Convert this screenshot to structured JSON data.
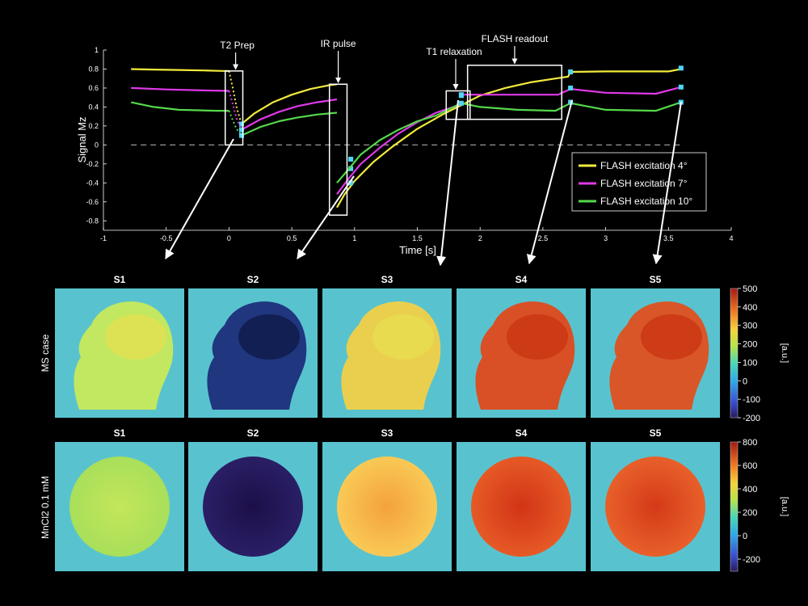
{
  "chart_data": [
    {
      "type": "line",
      "xlabel": "Time [s]",
      "ylabel": "Signal Mz",
      "xlim": [
        -1,
        4
      ],
      "ylim": [
        -0.9,
        1.0
      ],
      "xticks": [
        -1,
        -0.5,
        0,
        0.5,
        1,
        1.5,
        2,
        2.5,
        3,
        3.5,
        4
      ],
      "xtick_labels": [
        "-1",
        "-0.5",
        "0",
        "0.5",
        "1",
        "1.5",
        "2",
        "2.5",
        "3",
        "3.5",
        "4"
      ],
      "yticks": [
        -0.8,
        -0.6,
        -0.4,
        -0.2,
        0,
        0.2,
        0.4,
        0.6,
        0.8,
        1
      ],
      "ytick_labels": [
        "-0.8",
        "-0.6",
        "-0.4",
        "-0.2",
        "0",
        "0.2",
        "0.4",
        "0.6",
        "0.8",
        "1"
      ],
      "zero_line": "dashed",
      "legend_position": "right",
      "series": [
        {
          "name": "FLASH excitation 4°",
          "color": "#f2ea3c",
          "segments": [
            [
              [
                -0.78,
                0.8
              ],
              [
                -0.6,
                0.795
              ],
              [
                -0.4,
                0.79
              ],
              [
                -0.2,
                0.785
              ],
              [
                -0.05,
                0.78
              ],
              [
                0.0,
                0.78
              ]
            ],
            [
              [
                0.0,
                0.78
              ],
              [
                0.03,
                0.6
              ],
              [
                0.06,
                0.4
              ],
              [
                0.1,
                0.22
              ]
            ],
            [
              [
                0.1,
                0.22
              ],
              [
                0.2,
                0.33
              ],
              [
                0.35,
                0.45
              ],
              [
                0.5,
                0.53
              ],
              [
                0.65,
                0.59
              ],
              [
                0.8,
                0.63
              ],
              [
                0.86,
                0.64
              ]
            ],
            [
              [
                0.86,
                -0.66
              ],
              [
                0.92,
                -0.52
              ],
              [
                1.0,
                -0.38
              ],
              [
                1.15,
                -0.18
              ],
              [
                1.3,
                -0.02
              ],
              [
                1.5,
                0.17
              ],
              [
                1.7,
                0.32
              ],
              [
                1.85,
                0.42
              ]
            ],
            [
              [
                1.85,
                0.42
              ],
              [
                2.0,
                0.52
              ],
              [
                2.2,
                0.6
              ],
              [
                2.4,
                0.66
              ],
              [
                2.6,
                0.7
              ],
              [
                2.7,
                0.72
              ],
              [
                2.72,
                0.77
              ],
              [
                3.0,
                0.775
              ],
              [
                3.3,
                0.775
              ],
              [
                3.5,
                0.775
              ],
              [
                3.6,
                0.8
              ]
            ]
          ],
          "markers": [
            [
              0.1,
              0.22
            ],
            [
              0.97,
              -0.15
            ],
            [
              1.85,
              0.52
            ],
            [
              2.72,
              0.77
            ],
            [
              3.6,
              0.81
            ]
          ]
        },
        {
          "name": "FLASH excitation 7°",
          "color": "#e038e8",
          "segments": [
            [
              [
                -0.78,
                0.6
              ],
              [
                -0.5,
                0.585
              ],
              [
                -0.2,
                0.575
              ],
              [
                0.0,
                0.57
              ]
            ],
            [
              [
                0.0,
                0.57
              ],
              [
                0.03,
                0.43
              ],
              [
                0.06,
                0.28
              ],
              [
                0.1,
                0.16
              ]
            ],
            [
              [
                0.1,
                0.16
              ],
              [
                0.25,
                0.27
              ],
              [
                0.4,
                0.35
              ],
              [
                0.55,
                0.41
              ],
              [
                0.7,
                0.45
              ],
              [
                0.86,
                0.48
              ]
            ],
            [
              [
                0.86,
                -0.52
              ],
              [
                0.95,
                -0.36
              ],
              [
                1.05,
                -0.2
              ],
              [
                1.2,
                -0.03
              ],
              [
                1.35,
                0.12
              ],
              [
                1.5,
                0.24
              ],
              [
                1.65,
                0.34
              ],
              [
                1.85,
                0.43
              ]
            ],
            [
              [
                1.85,
                0.53
              ],
              [
                2.1,
                0.53
              ],
              [
                2.4,
                0.53
              ],
              [
                2.62,
                0.53
              ],
              [
                2.72,
                0.59
              ],
              [
                3.0,
                0.55
              ],
              [
                3.4,
                0.54
              ],
              [
                3.6,
                0.61
              ]
            ]
          ],
          "markers": [
            [
              0.1,
              0.16
            ],
            [
              0.97,
              -0.25
            ],
            [
              1.85,
              0.53
            ],
            [
              2.72,
              0.6
            ],
            [
              3.6,
              0.61
            ]
          ]
        },
        {
          "name": "FLASH excitation 10°",
          "color": "#55d84a",
          "segments": [
            [
              [
                -0.78,
                0.45
              ],
              [
                -0.6,
                0.4
              ],
              [
                -0.4,
                0.37
              ],
              [
                -0.1,
                0.36
              ],
              [
                0.0,
                0.36
              ]
            ],
            [
              [
                0.0,
                0.36
              ],
              [
                0.03,
                0.26
              ],
              [
                0.06,
                0.17
              ],
              [
                0.1,
                0.1
              ]
            ],
            [
              [
                0.1,
                0.1
              ],
              [
                0.25,
                0.19
              ],
              [
                0.4,
                0.25
              ],
              [
                0.55,
                0.29
              ],
              [
                0.7,
                0.32
              ],
              [
                0.86,
                0.34
              ]
            ],
            [
              [
                0.86,
                -0.4
              ],
              [
                0.95,
                -0.26
              ],
              [
                1.05,
                -0.1
              ],
              [
                1.2,
                0.05
              ],
              [
                1.35,
                0.16
              ],
              [
                1.5,
                0.25
              ],
              [
                1.65,
                0.31
              ],
              [
                1.85,
                0.44
              ]
            ],
            [
              [
                1.85,
                0.44
              ],
              [
                2.0,
                0.4
              ],
              [
                2.3,
                0.37
              ],
              [
                2.6,
                0.36
              ],
              [
                2.72,
                0.44
              ],
              [
                3.0,
                0.37
              ],
              [
                3.4,
                0.36
              ],
              [
                3.6,
                0.45
              ]
            ]
          ],
          "markers": [
            [
              0.1,
              0.1
            ],
            [
              0.97,
              -0.4
            ],
            [
              1.85,
              0.44
            ],
            [
              2.72,
              0.45
            ],
            [
              3.6,
              0.45
            ]
          ]
        }
      ],
      "annotations": [
        {
          "label": "T2 Prep",
          "box": [
            -0.03,
            0.11,
            0.0,
            0.78
          ]
        },
        {
          "label": "IR pulse",
          "box": [
            0.8,
            0.94,
            -0.74,
            0.64
          ]
        },
        {
          "label": "T1 relaxation",
          "box": [
            1.73,
            1.92,
            0.27,
            0.57
          ]
        },
        {
          "label": "FLASH readout",
          "box": [
            1.9,
            2.65,
            0.27,
            0.84
          ]
        }
      ]
    }
  ],
  "panels": {
    "row1_label": "MS case",
    "row2_label": "MnCl2 0.1 mM",
    "titles": [
      "S1",
      "S2",
      "S3",
      "S4",
      "S5"
    ],
    "colorbar1": {
      "label": "[a.u.]",
      "ticks": [
        "500",
        "400",
        "300",
        "200",
        "100",
        "0",
        "-100",
        "-200"
      ]
    },
    "colorbar2": {
      "label": "[a.u.]",
      "ticks": [
        "800",
        "600",
        "400",
        "200",
        "0",
        "-200"
      ]
    },
    "colors": {
      "background": "#58c3cf",
      "phantom": [
        "#b9e35a",
        "#1a0d44",
        "#f8b74a",
        "#e1421f",
        "#e14a22"
      ],
      "head": [
        "#c8e95a",
        "#1e2e7a",
        "#f2d048",
        "#e04a1c",
        "#e0501f"
      ]
    }
  }
}
